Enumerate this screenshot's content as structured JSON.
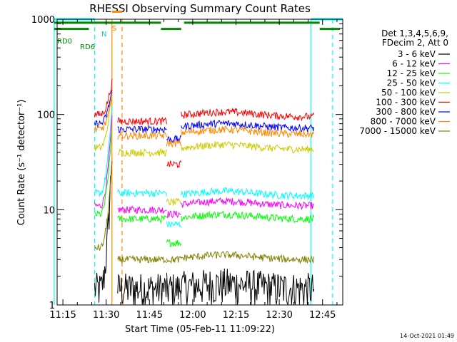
{
  "chart_data": {
    "type": "line",
    "title": "RHESSI Observing Summary Count Rates",
    "xlabel": "Start Time (05-Feb-11 11:09:22)",
    "ylabel": "Count Rate (s⁻¹ detector⁻¹)",
    "yscale": "log",
    "ylim": [
      1,
      1000
    ],
    "xlim_minutes": [
      675,
      770
    ],
    "x_ticks": [
      {
        "min": 675,
        "label": "11:15"
      },
      {
        "min": 690,
        "label": "11:30"
      },
      {
        "min": 705,
        "label": "11:45"
      },
      {
        "min": 720,
        "label": "12:00"
      },
      {
        "min": 735,
        "label": "12:15"
      },
      {
        "min": 750,
        "label": "12:30"
      },
      {
        "min": 765,
        "label": "12:45"
      }
    ],
    "y_ticks": [
      {
        "v": 1,
        "label": "1"
      },
      {
        "v": 10,
        "label": "10"
      },
      {
        "v": 100,
        "label": "100"
      },
      {
        "v": 1000,
        "label": "1000"
      }
    ],
    "legend_header": [
      "Det 1,3,4,5,6,9,",
      "FDecim 2, Att 0"
    ],
    "legend_placement": "right",
    "series": [
      {
        "name": "3 - 6 keV",
        "color": "#000000"
      },
      {
        "name": "6 - 12 keV",
        "color": "#ff00ff"
      },
      {
        "name": "12 - 25 keV",
        "color": "#00ff00"
      },
      {
        "name": "25 - 50 keV",
        "color": "#00ffff"
      },
      {
        "name": "50 - 100 keV",
        "color": "#cccc00"
      },
      {
        "name": "100 - 300 keV",
        "color": "#ff0000"
      },
      {
        "name": "300 - 800 keV",
        "color": "#0000ff"
      },
      {
        "name": "800 - 7000 keV",
        "color": "#ff8800"
      },
      {
        "name": "7000 - 15000 keV",
        "color": "#808000"
      }
    ],
    "segments_minutes": [
      [
        686,
        692
      ],
      [
        694,
        711
      ],
      [
        711,
        716
      ],
      [
        716,
        762
      ]
    ],
    "series_levels": [
      {
        "base": [
          1.5,
          1.5,
          1.5,
          1.5
        ],
        "peak": 40
      },
      {
        "base": [
          11,
          10,
          9,
          11
        ],
        "peak": 90
      },
      {
        "base": [
          9,
          8,
          4.5,
          8
        ],
        "peak": 70
      },
      {
        "base": [
          15,
          15,
          7,
          14
        ],
        "peak": 120
      },
      {
        "base": [
          45,
          40,
          12,
          43
        ],
        "peak": 170
      },
      {
        "base": [
          100,
          85,
          30,
          95
        ],
        "peak": 220
      },
      {
        "base": [
          80,
          70,
          55,
          72
        ],
        "peak": 180
      },
      {
        "base": [
          70,
          60,
          50,
          62
        ],
        "peak": 150
      },
      {
        "base": [
          4,
          3,
          3,
          3
        ],
        "peak": 30
      }
    ],
    "annotations": {
      "rd0": "RD0",
      "rd6": "RD6",
      "n": "N",
      "s": "S",
      "timestamp": "14-Oct-2021 01:49"
    },
    "status_bars": [
      {
        "label_key": "n",
        "color": "#00ffff",
        "segments": [
          [
            672,
            686
          ],
          [
            761,
            772
          ]
        ],
        "y": 1000
      },
      {
        "label_key": "s",
        "color": "#ff8800",
        "segments": [
          [
            692,
            695.5
          ]
        ],
        "y": 1200
      },
      {
        "label_key": "rd0",
        "color": "#008800",
        "segments": [
          [
            672,
            709
          ],
          [
            717,
            764
          ]
        ],
        "y": 920
      },
      {
        "label_key": "rd6",
        "color": "#008800",
        "segments": [
          [
            672,
            684
          ],
          [
            709,
            716
          ],
          [
            764,
            771
          ]
        ],
        "y": 790
      }
    ],
    "vlines": [
      {
        "min": 672,
        "color": "#00ffff",
        "dash": false
      },
      {
        "min": 686,
        "color": "#00ffff",
        "dash": true
      },
      {
        "min": 692,
        "color": "#ff8800",
        "dash": false
      },
      {
        "min": 695.5,
        "color": "#ff8800",
        "dash": true
      },
      {
        "min": 761,
        "color": "#00ffff",
        "dash": false
      },
      {
        "min": 768.5,
        "color": "#00ffff",
        "dash": true
      }
    ]
  }
}
